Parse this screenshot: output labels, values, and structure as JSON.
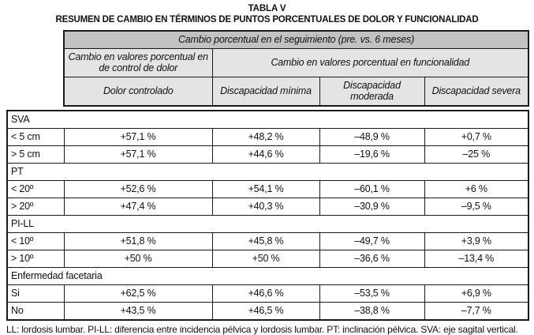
{
  "title": "TABLA V",
  "subtitle": "RESUMEN DE CAMBIO EN TÉRMINOS DE PUNTOS PORCENTUALES DE DOLOR Y FUNCIONALIDAD",
  "header": {
    "banner": "Cambio porcentual en el seguimiento (pre. vs. 6 meses)",
    "group_pain": "Cambio en valores porcentual en de control de dolor",
    "group_function": "Cambio en valores porcentual en  funcionalidad",
    "columns": [
      "Dolor controlado",
      "Discapacidad mínima",
      "Discapacidad moderada",
      "Discapacidad severa"
    ]
  },
  "sections": [
    {
      "label": "SVA",
      "rows": [
        {
          "label": "< 5 cm",
          "values": [
            "+57,1 %",
            "+48,2 %",
            "–48,9 %",
            "+0,7 %"
          ]
        },
        {
          "label": "> 5 cm",
          "values": [
            "+57,1 %",
            "+44,6 %",
            "–19,6 %",
            "–25 %"
          ]
        }
      ]
    },
    {
      "label": "PT",
      "rows": [
        {
          "label": "< 20º",
          "values": [
            "+52,6 %",
            "+54,1 %",
            "–60,1 %",
            "+6 %"
          ]
        },
        {
          "label": "> 20º",
          "values": [
            "+47,4 %",
            "+40,3 %",
            "–30,9 %",
            "–9,5 %"
          ]
        }
      ]
    },
    {
      "label": "PI-LL",
      "rows": [
        {
          "label": "< 10º",
          "values": [
            "+51,8 %",
            "+45,8 %",
            "–49,7 %",
            "+3,9 %"
          ]
        },
        {
          "label": "> 10º",
          "values": [
            "+50 %",
            "+50 %",
            "–36,6 %",
            "–13,4 %"
          ]
        }
      ]
    },
    {
      "label": "Enfermedad facetaria",
      "rows": [
        {
          "label": "Si",
          "values": [
            "+62,5 %",
            "+46,6 %",
            "–53,5 %",
            "+6,9 %"
          ]
        },
        {
          "label": "No",
          "values": [
            "+43,5 %",
            "+46,5 %",
            "–38,8 %",
            "–7,7 %"
          ]
        }
      ]
    }
  ],
  "footnote": "LL: lordosis lumbar. PI-LL: diferencia entre incidencia pélvica y lordosis lumbar. PT: inclinación pélvica. SVA: eje sagital vertical.",
  "colors": {
    "banner_bg": "#c2c2c2",
    "header_bg": "#e4e4e4",
    "border": "#1a1a1a"
  }
}
